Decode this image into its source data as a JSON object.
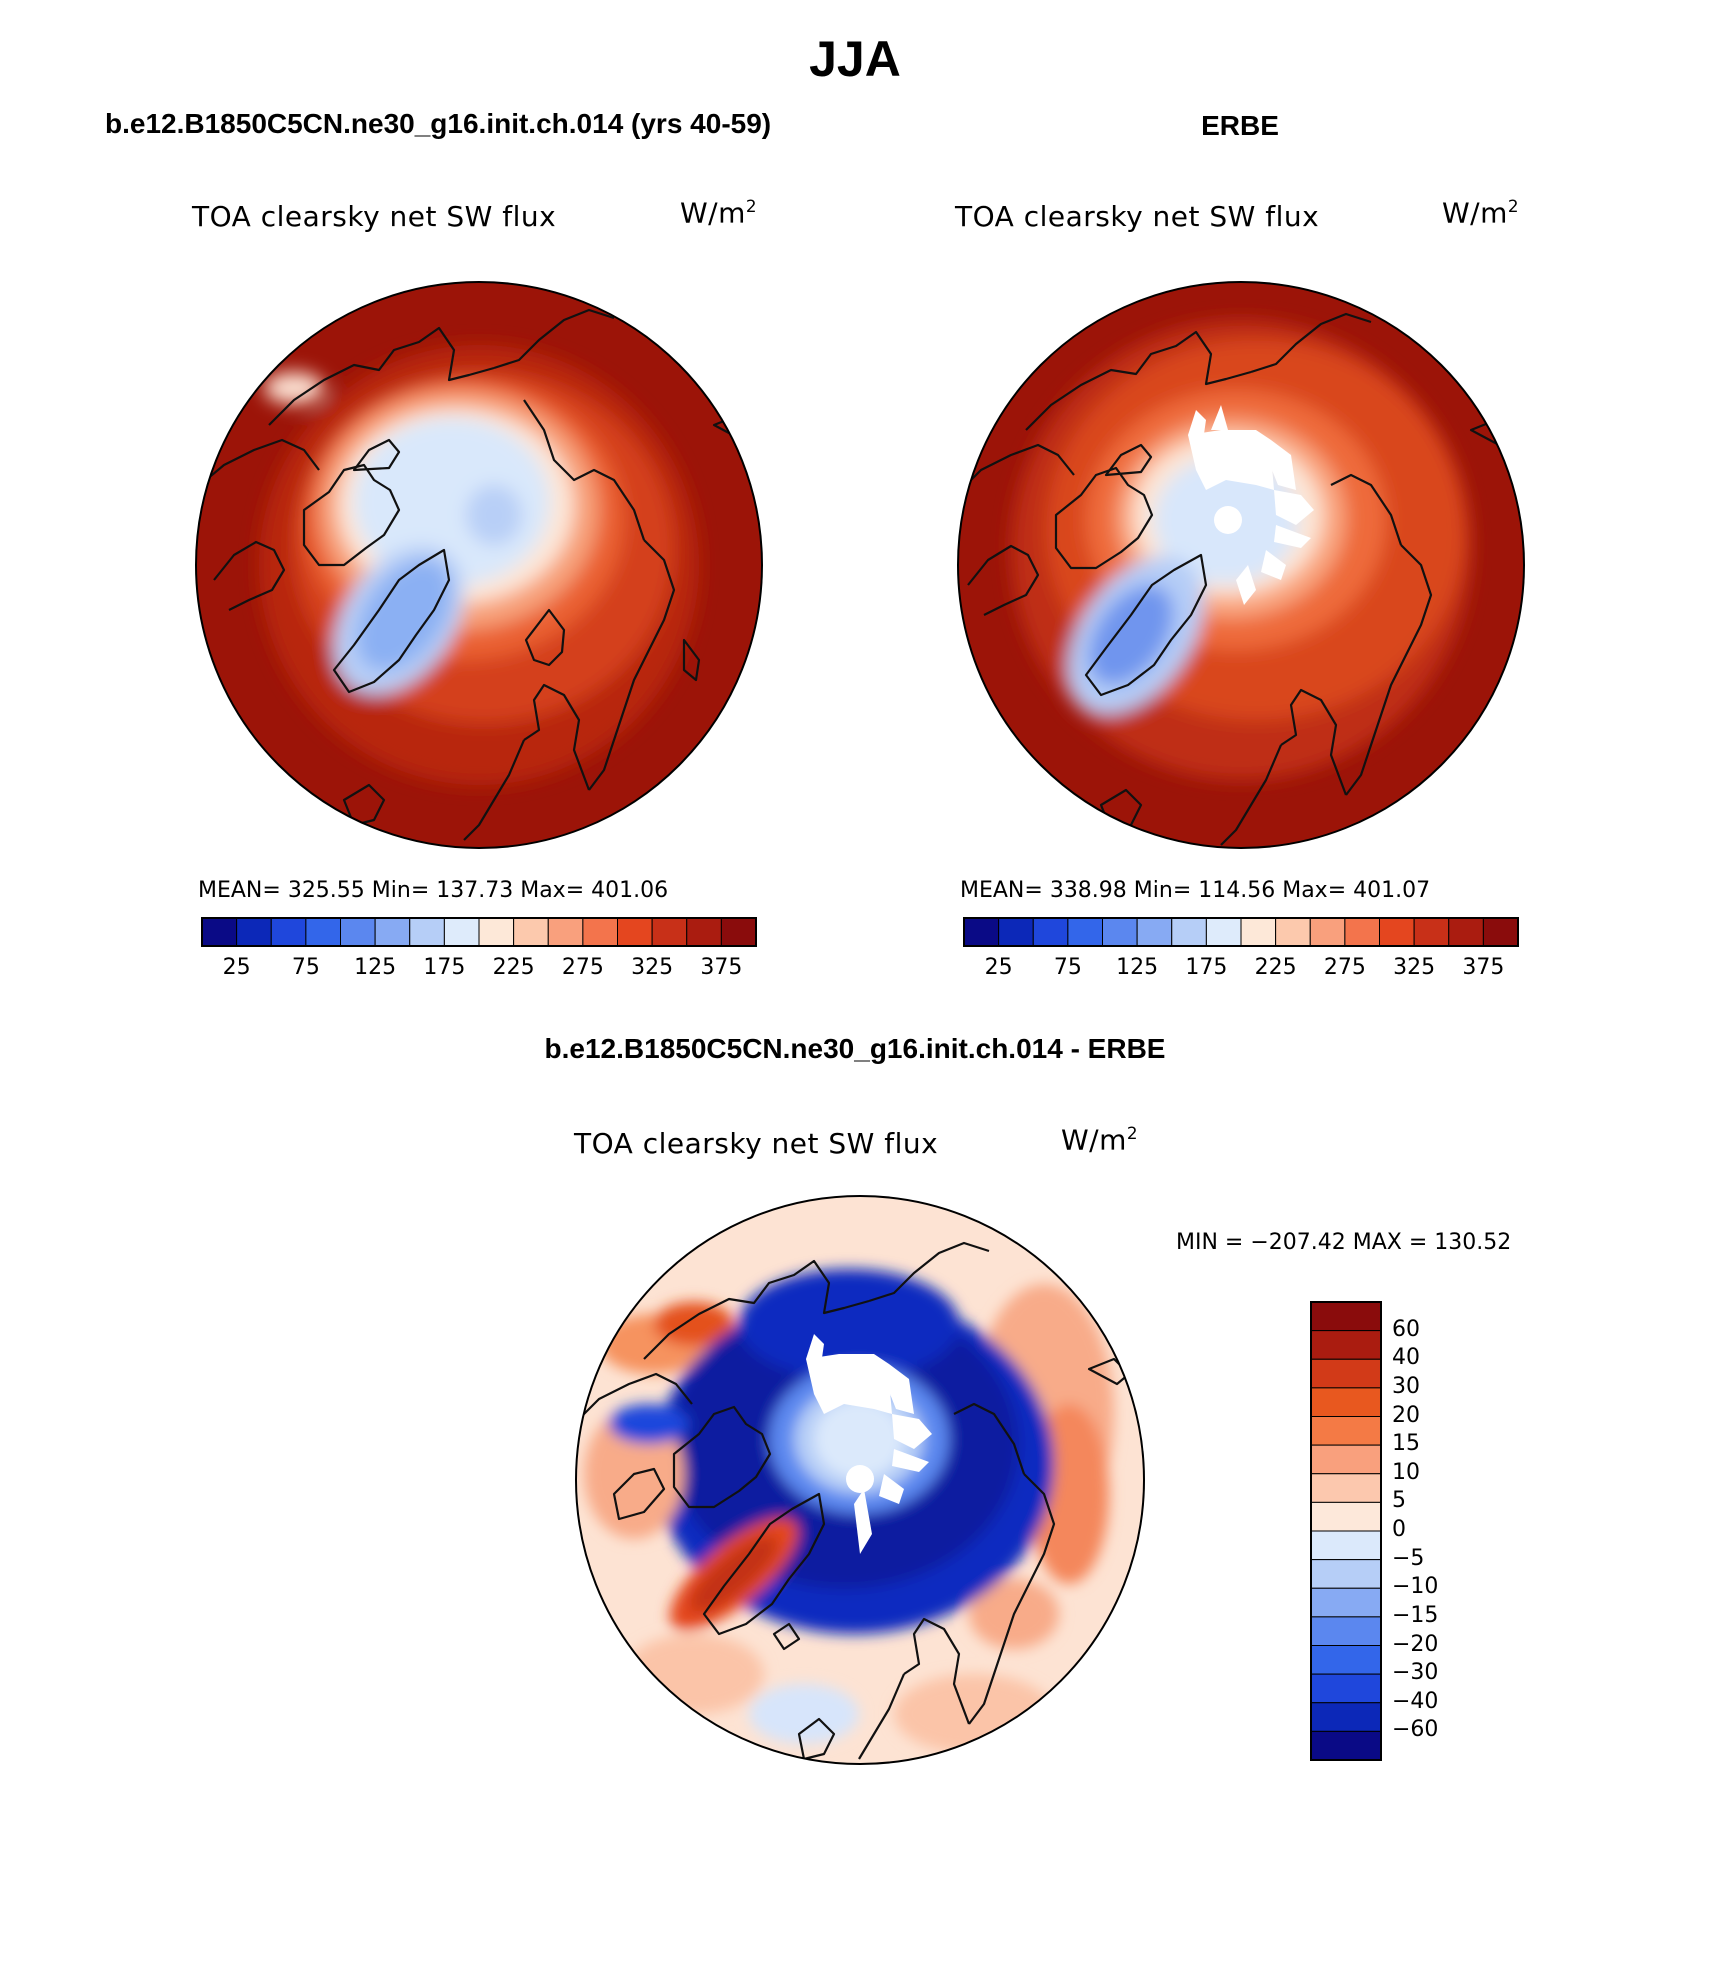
{
  "page_title": "JJA",
  "panels": [
    {
      "id": "model",
      "heading": "b.e12.B1850C5CN.ne30_g16.init.ch.014 (yrs 40-59)",
      "variable": "TOA clearsky net SW flux",
      "units_base": "W/m",
      "units_exp": "2",
      "stats_text": "MEAN= 325.55   Min= 137.73   Max= 401.06",
      "mean": 325.55,
      "min": 137.73,
      "max": 401.06
    },
    {
      "id": "obs",
      "heading": "ERBE",
      "variable": "TOA clearsky net SW flux",
      "units_base": "W/m",
      "units_exp": "2",
      "stats_text": "MEAN= 338.98   Min= 114.56   Max= 401.07",
      "mean": 338.98,
      "min": 114.56,
      "max": 401.07
    },
    {
      "id": "diff",
      "heading": "b.e12.B1850C5CN.ne30_g16.init.ch.014 - ERBE",
      "variable": "TOA clearsky net SW flux",
      "units_base": "W/m",
      "units_exp": "2",
      "stats_text": "MIN = −207.42 MAX = 130.52",
      "min": -207.42,
      "max": 130.52
    }
  ],
  "abs_colorbar": {
    "orientation": "horizontal",
    "tick_labels": [
      "25",
      "75",
      "125",
      "175",
      "225",
      "275",
      "325",
      "375"
    ],
    "colors": [
      "#0a0a86",
      "#0c28b8",
      "#1f47dc",
      "#3366ea",
      "#5b87ef",
      "#87aaf3",
      "#b6cef7",
      "#deebfb",
      "#fde8d8",
      "#fcc9ad",
      "#f9a07d",
      "#f3744c",
      "#e4461f",
      "#c83018",
      "#aa1c10",
      "#8a0c0c"
    ]
  },
  "diff_colorbar": {
    "orientation": "vertical",
    "levels": [
      "60",
      "40",
      "30",
      "20",
      "15",
      "10",
      "5",
      "0",
      "−5",
      "−10",
      "−15",
      "−20",
      "−30",
      "−40",
      "−60"
    ],
    "colors": [
      "#8a0c0c",
      "#aa1c10",
      "#d23a18",
      "#e8581f",
      "#f47a45",
      "#f9a07d",
      "#fcc8ae",
      "#fde8da",
      "#dbe9fb",
      "#b6cef7",
      "#87aaf3",
      "#5b87ef",
      "#3366ea",
      "#1f47dc",
      "#0c28b8",
      "#0a0a86"
    ]
  },
  "chart_data": [
    {
      "type": "heatmap",
      "title": "TOA clearsky net SW flux",
      "projection": "north polar stereographic",
      "panel_heading": "b.e12.B1850C5CN.ne30_g16.init.ch.014 (yrs 40-59)",
      "units": "W/m2",
      "mean": 325.55,
      "min": 137.73,
      "max": 401.06,
      "levels": [
        25,
        50,
        75,
        100,
        125,
        150,
        175,
        200,
        225,
        250,
        275,
        300,
        325,
        350,
        375
      ],
      "tick_labels": [
        25,
        75,
        125,
        175,
        225,
        275,
        325,
        375
      ],
      "legend_placement": "bottom"
    },
    {
      "type": "heatmap",
      "title": "TOA clearsky net SW flux",
      "projection": "north polar stereographic",
      "panel_heading": "ERBE",
      "units": "W/m2",
      "mean": 338.98,
      "min": 114.56,
      "max": 401.07,
      "levels": [
        25,
        50,
        75,
        100,
        125,
        150,
        175,
        200,
        225,
        250,
        275,
        300,
        325,
        350,
        375
      ],
      "tick_labels": [
        25,
        75,
        125,
        175,
        225,
        275,
        325,
        375
      ],
      "legend_placement": "bottom"
    },
    {
      "type": "heatmap",
      "title": "TOA clearsky net SW flux",
      "projection": "north polar stereographic",
      "panel_heading": "b.e12.B1850C5CN.ne30_g16.init.ch.014 - ERBE",
      "units": "W/m2",
      "min": -207.42,
      "max": 130.52,
      "levels": [
        -60,
        -40,
        -30,
        -20,
        -15,
        -10,
        -5,
        0,
        5,
        10,
        15,
        20,
        30,
        40,
        60
      ],
      "legend_placement": "right"
    }
  ]
}
